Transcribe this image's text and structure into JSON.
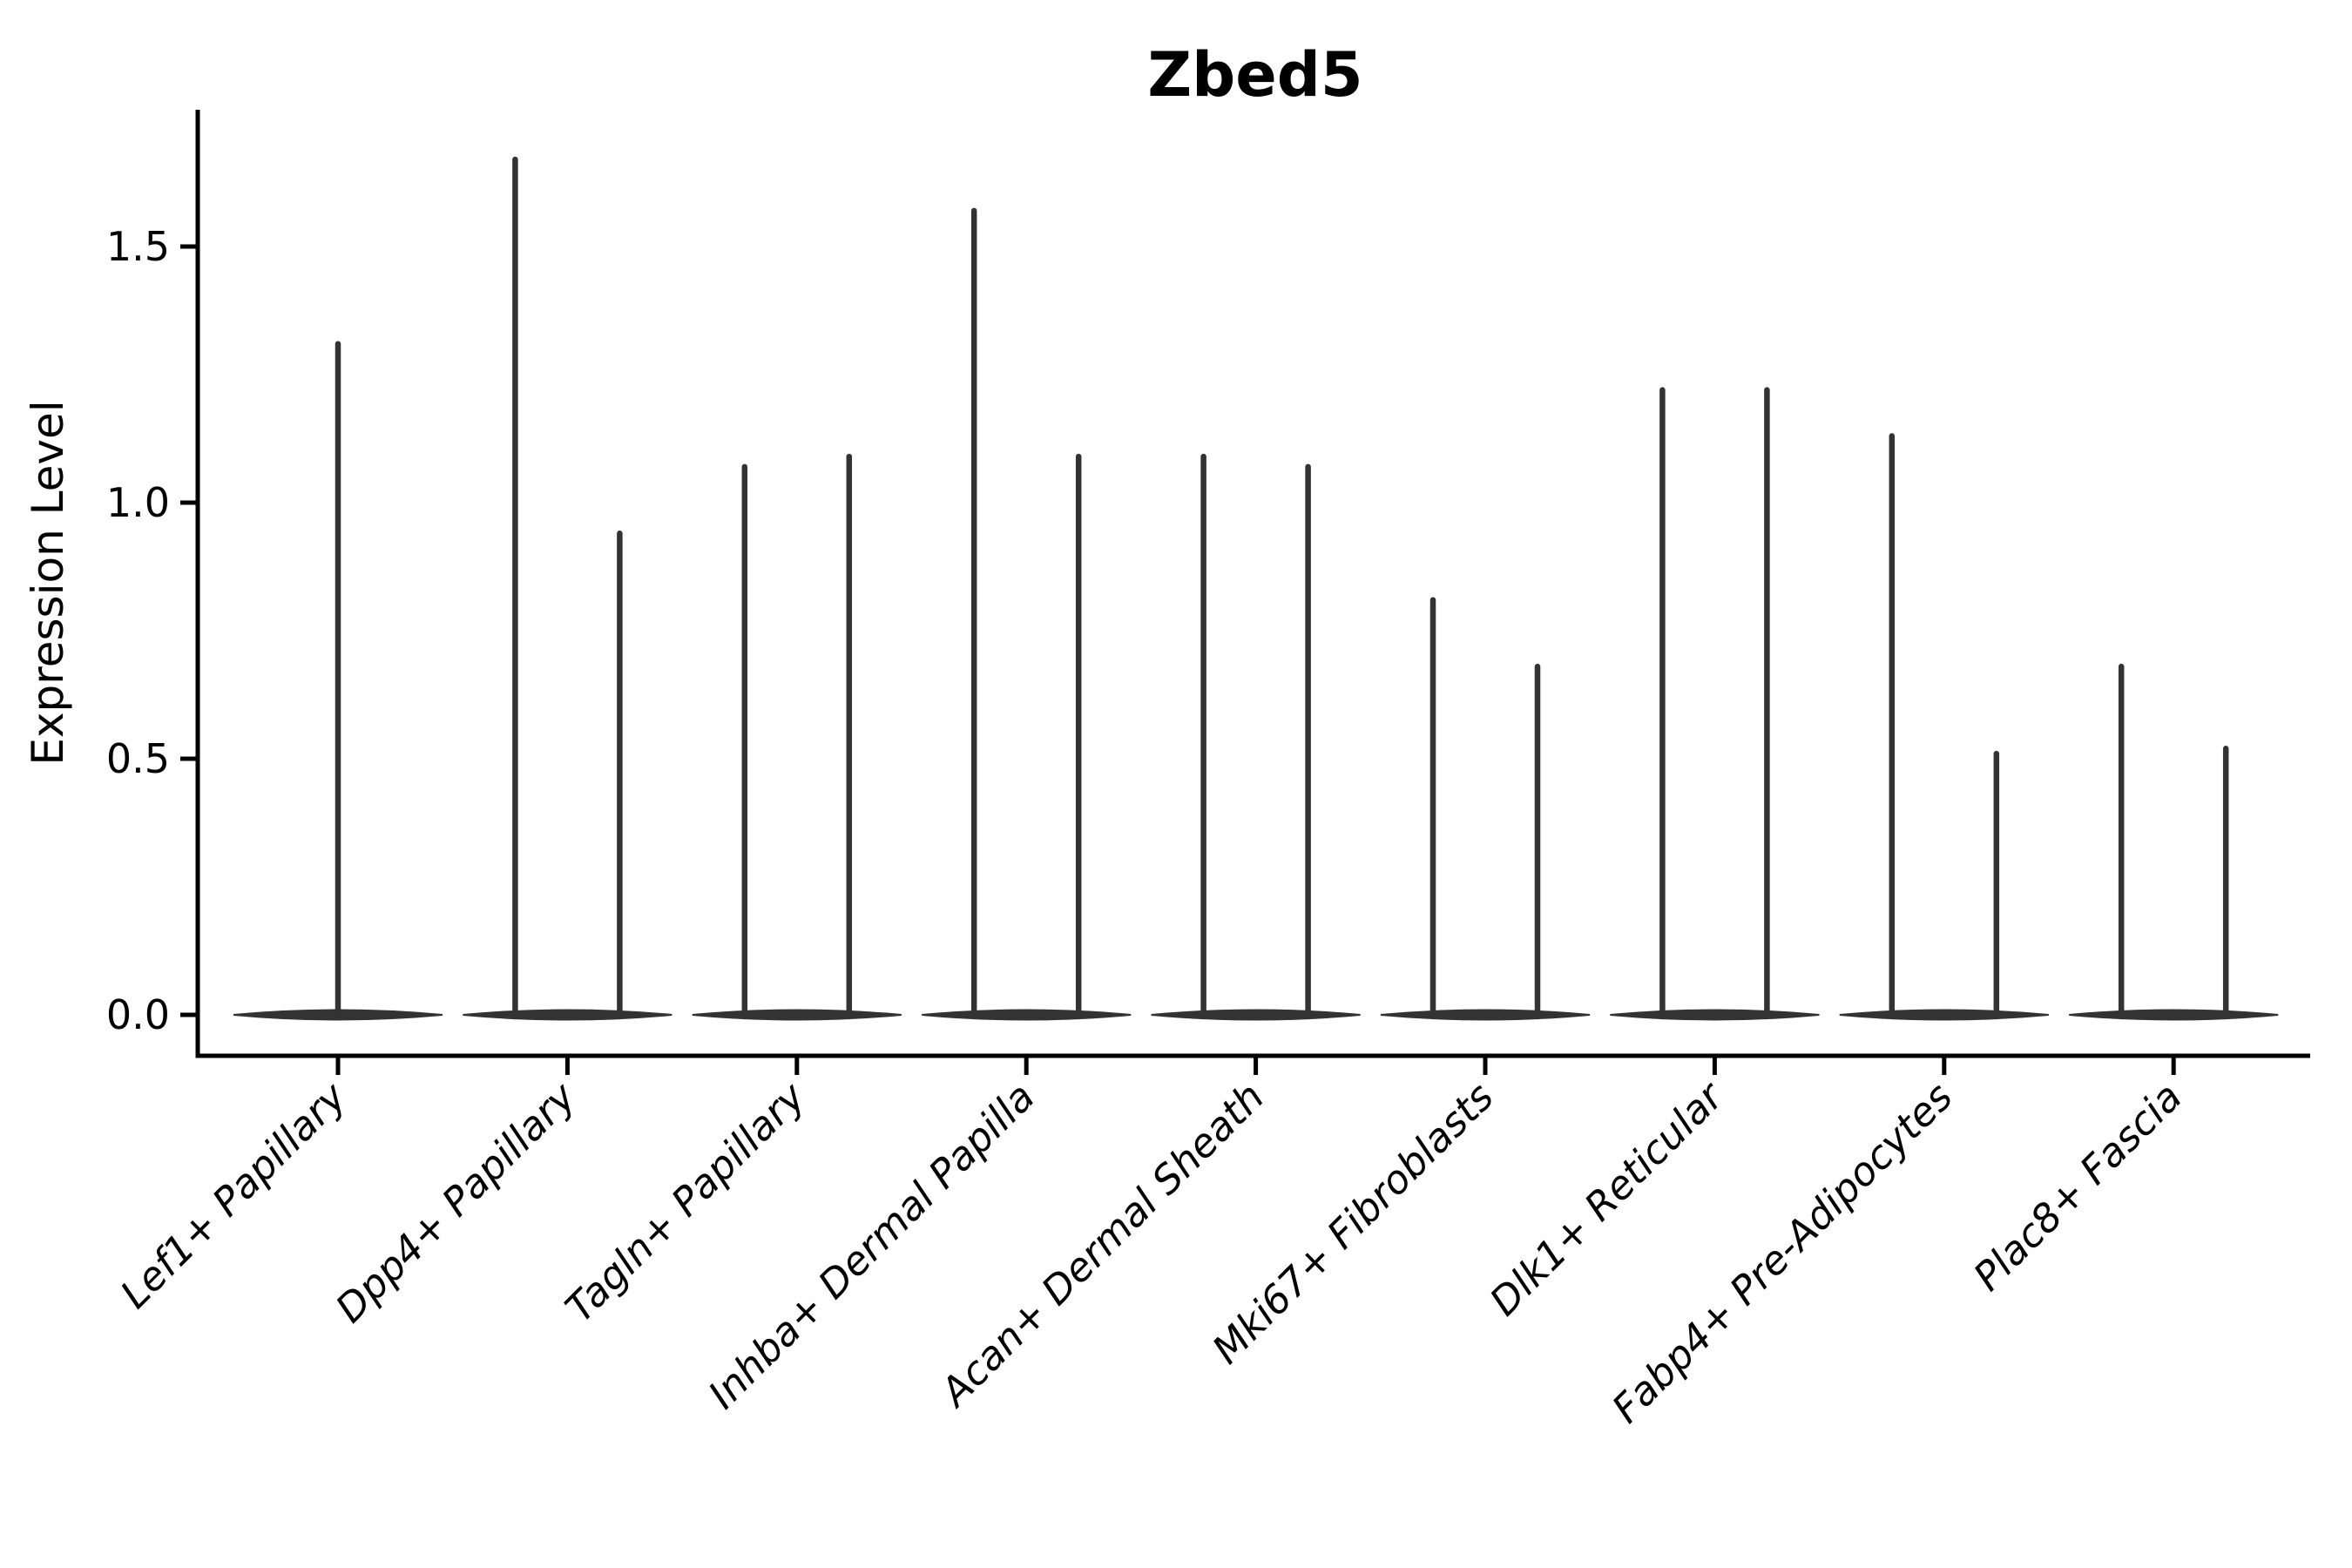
{
  "figure": {
    "background": "#ffffff"
  },
  "chart_data": {
    "type": "violin",
    "title": "Zbed5",
    "ylabel": "Expression Level",
    "xlabel": "",
    "categories": [
      "Lef1+ Papillary",
      "Dpp4+ Papillary",
      "Tagln+ Papillary",
      "Inhba+ Dermal Papilla",
      "Acan+ Dermal Sheath",
      "Mki67+ Fibroblasts",
      "Dlk1+ Reticular",
      "Fabp4+ Pre-Adipocytes",
      "Plac8+ Fascia"
    ],
    "series": [
      {
        "name": "Lef1+ Papillary",
        "spike_peaks": [
          1.31
        ]
      },
      {
        "name": "Dpp4+ Papillary",
        "spike_peaks": [
          1.67,
          0.94
        ]
      },
      {
        "name": "Tagln+ Papillary",
        "spike_peaks": [
          1.07,
          1.09
        ]
      },
      {
        "name": "Inhba+ Dermal Papilla",
        "spike_peaks": [
          1.57,
          1.09
        ]
      },
      {
        "name": "Acan+ Dermal Sheath",
        "spike_peaks": [
          1.09,
          1.07
        ]
      },
      {
        "name": "Mki67+ Fibroblasts",
        "spike_peaks": [
          0.81,
          0.68
        ]
      },
      {
        "name": "Dlk1+ Reticular",
        "spike_peaks": [
          1.22,
          1.22
        ]
      },
      {
        "name": "Fabp4+ Pre-Adipocytes",
        "spike_peaks": [
          1.13,
          0.51
        ]
      },
      {
        "name": "Plac8+ Fascia",
        "spike_peaks": [
          0.68,
          0.52
        ]
      }
    ],
    "baseline_density_at_zero": true,
    "yticks": [
      "0.0",
      "0.5",
      "1.0",
      "1.5"
    ],
    "ytick_values": [
      0.0,
      0.5,
      1.0,
      1.5
    ],
    "ylim": [
      0,
      1.77
    ],
    "grid": false,
    "legend": "none",
    "ink_color": "#333333",
    "axis_color": "#000000"
  }
}
